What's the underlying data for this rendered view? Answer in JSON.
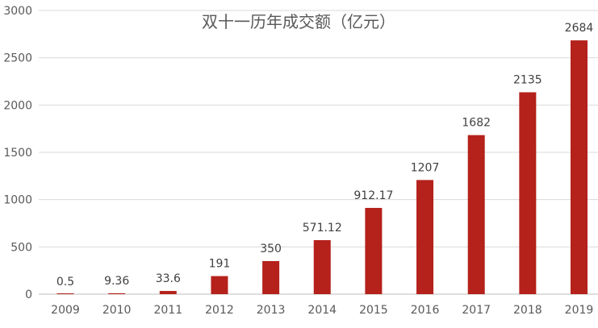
{
  "chart_data": {
    "type": "bar",
    "title": "双十一历年成交额（亿元）",
    "categories": [
      "2009",
      "2010",
      "2011",
      "2012",
      "2013",
      "2014",
      "2015",
      "2016",
      "2017",
      "2018",
      "2019"
    ],
    "values": [
      0.5,
      9.36,
      33.6,
      191,
      350,
      571.12,
      912.17,
      1207,
      1682,
      2135,
      2684
    ],
    "value_labels": [
      "0.5",
      "9.36",
      "33.6",
      "191",
      "350",
      "571.12",
      "912.17",
      "1207",
      "1682",
      "2135",
      "2684"
    ],
    "ylim": [
      0,
      3000
    ],
    "yticks": [
      0,
      500,
      1000,
      1500,
      2000,
      2500,
      3000
    ],
    "xlabel": "",
    "ylabel": "",
    "grid": true,
    "legend": "none",
    "bar_color": "#b5211b"
  }
}
